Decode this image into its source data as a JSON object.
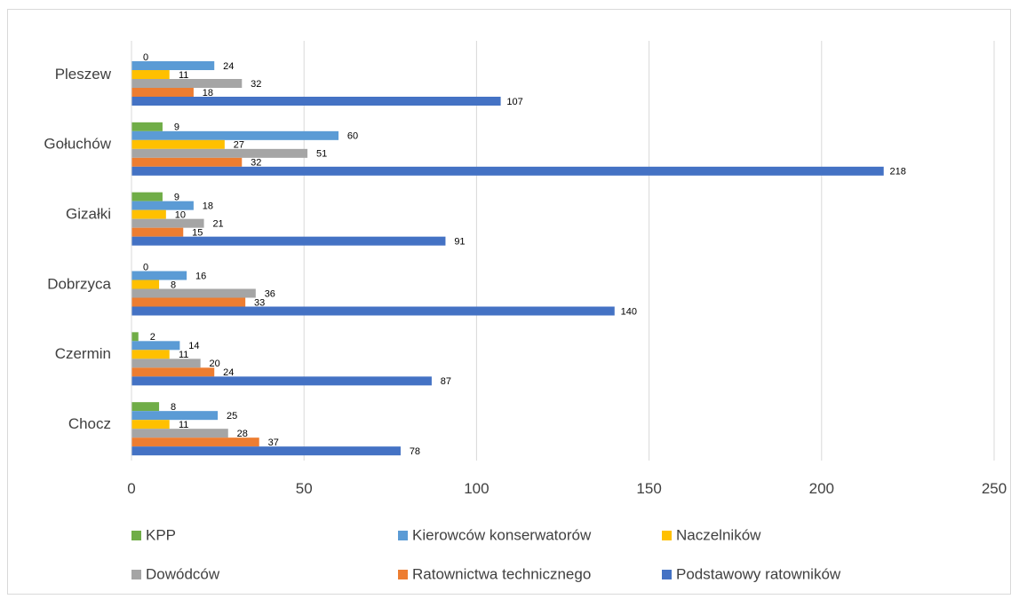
{
  "chart_data": {
    "type": "bar",
    "orientation": "horizontal",
    "categories": [
      "Pleszew",
      "Gołuchów",
      "Gizałki",
      "Dobrzyca",
      "Czermin",
      "Chocz"
    ],
    "series": [
      {
        "name": "KPP",
        "color": "#70ad47",
        "values": [
          0,
          9,
          9,
          0,
          2,
          8
        ]
      },
      {
        "name": "Kierowców konserwatorów",
        "color": "#5b9bd5",
        "values": [
          24,
          60,
          18,
          16,
          14,
          25
        ]
      },
      {
        "name": "Naczelników",
        "color": "#ffc000",
        "values": [
          11,
          27,
          10,
          8,
          11,
          11
        ]
      },
      {
        "name": "Dowódców",
        "color": "#a5a5a5",
        "values": [
          32,
          51,
          21,
          36,
          20,
          28
        ]
      },
      {
        "name": "Ratownictwa technicznego",
        "color": "#ed7d31",
        "values": [
          18,
          32,
          15,
          33,
          24,
          37
        ]
      },
      {
        "name": "Podstawowy ratowników",
        "color": "#4472c4",
        "values": [
          107,
          218,
          91,
          140,
          87,
          78
        ]
      }
    ],
    "xlim": [
      0,
      250
    ],
    "xticks": [
      "0",
      "50",
      "100",
      "150",
      "200",
      "250"
    ],
    "grid": true,
    "data_labels": true,
    "legend_position": "bottom"
  }
}
